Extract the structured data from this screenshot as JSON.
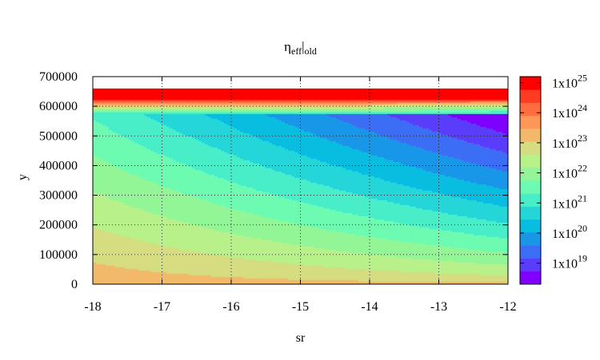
{
  "chart_data": {
    "type": "heatmap",
    "title": {
      "base": "η",
      "sub1": "eff",
      "bar": "|",
      "sub2": "old"
    },
    "xlabel": "sr",
    "ylabel": "y",
    "xlim": [
      -18,
      -12
    ],
    "ylim": [
      0,
      700000
    ],
    "x_ticks": [
      -18,
      -17,
      -16,
      -15,
      -14,
      -13,
      -12
    ],
    "y_ticks": [
      0,
      100000,
      200000,
      300000,
      400000,
      500000,
      600000,
      700000
    ],
    "grid": true,
    "data_ymax": 660000,
    "colorbar": {
      "scale": "log",
      "range_log10": [
        18.3,
        25.2
      ],
      "ticks": [
        {
          "base": "1x10",
          "exp": "19",
          "log": 19
        },
        {
          "base": "1x10",
          "exp": "20",
          "log": 20
        },
        {
          "base": "1x10",
          "exp": "21",
          "log": 21
        },
        {
          "base": "1x10",
          "exp": "22",
          "log": 22
        },
        {
          "base": "1x10",
          "exp": "23",
          "log": 23
        },
        {
          "base": "1x10",
          "exp": "24",
          "log": 24
        },
        {
          "base": "1x10",
          "exp": "25",
          "log": 25
        }
      ],
      "band_colors": [
        "#7f00ff",
        "#5a3dfb",
        "#3b6ef4",
        "#1996e8",
        "#08bde0",
        "#25d6d8",
        "#48eec8",
        "#6cfbb0",
        "#92f597",
        "#b8f08a",
        "#d6dc80",
        "#f3b96a",
        "#ff9856",
        "#ff6d40",
        "#ff3b24",
        "#ff0000"
      ]
    },
    "field": {
      "description_of_levels": "log10 eta_eff on sr (x) vs y",
      "surface_log10": 23.3,
      "sr_slope_at_depth": 1.1,
      "upper_layer_top_y": 660000,
      "upper_layer_bottom_y": 575000,
      "upper_layer_log10": 25.0
    }
  }
}
